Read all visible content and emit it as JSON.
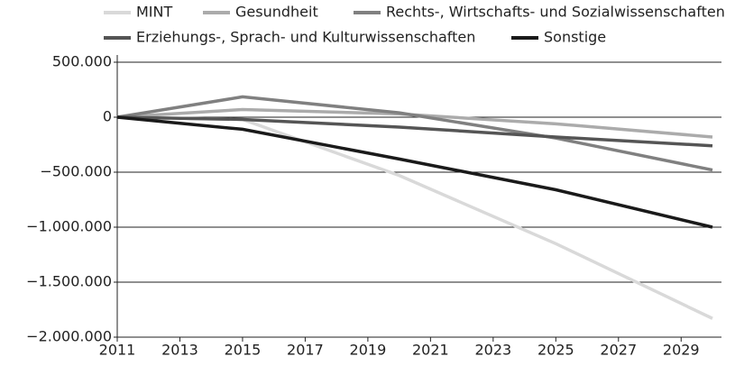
{
  "chart_data": {
    "type": "line",
    "x": [
      2011,
      2015,
      2020,
      2025,
      2030
    ],
    "series": [
      {
        "name": "MINT",
        "color": "#d9d9d9",
        "values": [
          0,
          -20000,
          -530000,
          -1150000,
          -1830000
        ]
      },
      {
        "name": "Gesundheit",
        "color": "#ababab",
        "values": [
          0,
          70000,
          30000,
          -60000,
          -180000
        ]
      },
      {
        "name": "Rechts-, Wirtschafts- und Sozialwissenschaften",
        "color": "#808080",
        "values": [
          0,
          185000,
          40000,
          -190000,
          -480000
        ]
      },
      {
        "name": "Erziehungs-, Sprach- und Kulturwissenschaften",
        "color": "#555555",
        "values": [
          0,
          -20000,
          -90000,
          -180000,
          -260000
        ]
      },
      {
        "name": "Sonstige",
        "color": "#1a1a1a",
        "values": [
          0,
          -110000,
          -380000,
          -660000,
          -1000000
        ]
      }
    ],
    "xlim": [
      2011,
      2030
    ],
    "xticks": [
      2011,
      2013,
      2015,
      2017,
      2019,
      2021,
      2023,
      2025,
      2027,
      2029
    ],
    "ylim": [
      -2000000,
      500000
    ],
    "yticks": [
      {
        "value": -2000000,
        "label": "−2.000.000"
      },
      {
        "value": -1500000,
        "label": "−1.500.000"
      },
      {
        "value": -1000000,
        "label": "−1.000.000"
      },
      {
        "value": -500000,
        "label": "−500.000"
      },
      0,
      {
        "value": 500000,
        "label": "500.000"
      }
    ],
    "grid": true,
    "legend": "top"
  }
}
